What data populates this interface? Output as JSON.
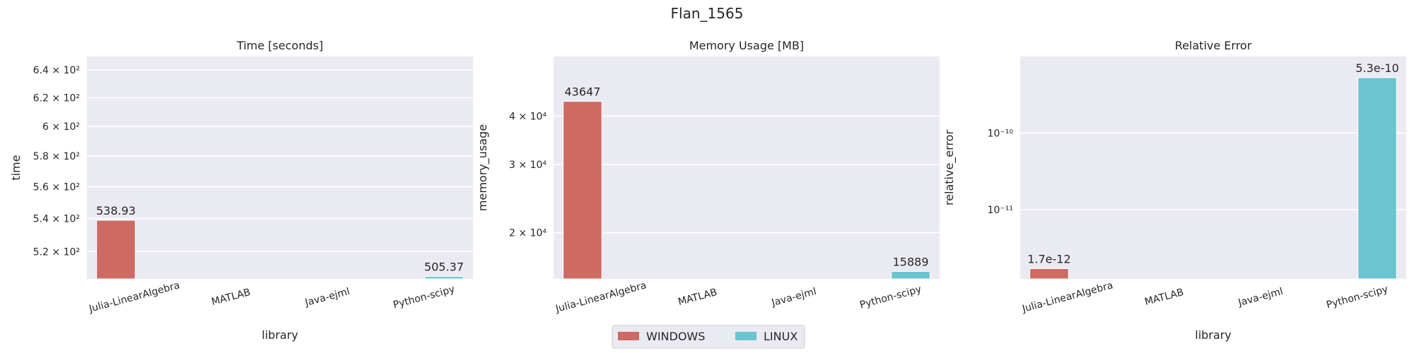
{
  "figure_title": "Flan_1565",
  "legend": {
    "items": [
      {
        "label": "WINDOWS",
        "color": "#cd6a64"
      },
      {
        "label": "LINUX",
        "color": "#6cc5ce"
      }
    ]
  },
  "colors": {
    "windows": "#cd6a64",
    "linux": "#6cc5ce",
    "panel_bg": "#eaeaf2"
  },
  "chart_data": [
    {
      "type": "bar",
      "title": "Time [seconds]",
      "xlabel": "library",
      "ylabel": "time",
      "yscale": "log",
      "categories": [
        "Julia-LinearAlgebra",
        "MATLAB",
        "Java-ejml",
        "Python-scipy"
      ],
      "series": [
        {
          "name": "WINDOWS",
          "values": [
            538.93,
            null,
            null,
            null
          ]
        },
        {
          "name": "LINUX",
          "values": [
            null,
            null,
            null,
            505.37
          ]
        }
      ],
      "bar_labels": [
        "538.93",
        "505.37"
      ],
      "yticks": [
        {
          "value": 520,
          "label": "5.2 × 10²"
        },
        {
          "value": 540,
          "label": "5.4 × 10²"
        },
        {
          "value": 560,
          "label": "5.6 × 10²"
        },
        {
          "value": 580,
          "label": "5.8 × 10²"
        },
        {
          "value": 600,
          "label": "6 × 10²"
        },
        {
          "value": 620,
          "label": "6.2 × 10²"
        },
        {
          "value": 640,
          "label": "6.4 × 10²"
        }
      ],
      "ylim": [
        504,
        650
      ],
      "grid": true
    },
    {
      "type": "bar",
      "title": "Memory Usage [MB]",
      "xlabel": "library",
      "ylabel": "memory_usage",
      "yscale": "log",
      "categories": [
        "Julia-LinearAlgebra",
        "MATLAB",
        "Java-ejml",
        "Python-scipy"
      ],
      "series": [
        {
          "name": "WINDOWS",
          "values": [
            43647,
            null,
            null,
            null
          ]
        },
        {
          "name": "LINUX",
          "values": [
            null,
            null,
            null,
            15889
          ]
        }
      ],
      "bar_labels": [
        "43647",
        "15889"
      ],
      "yticks": [
        {
          "value": 20000,
          "label": "2 × 10⁴"
        },
        {
          "value": 30000,
          "label": "3 × 10⁴"
        },
        {
          "value": 40000,
          "label": "4 × 10⁴"
        }
      ],
      "ylim": [
        15200,
        57000
      ],
      "grid": true
    },
    {
      "type": "bar",
      "title": "Relative Error",
      "xlabel": "library",
      "ylabel": "relative_error",
      "yscale": "log",
      "categories": [
        "Julia-LinearAlgebra",
        "MATLAB",
        "Java-ejml",
        "Python-scipy"
      ],
      "series": [
        {
          "name": "WINDOWS",
          "values": [
            1.7e-12,
            null,
            null,
            null
          ]
        },
        {
          "name": "LINUX",
          "values": [
            null,
            null,
            null,
            5.3e-10
          ]
        }
      ],
      "bar_labels": [
        "1.7e-12",
        "5.3e-10"
      ],
      "yticks": [
        {
          "value": 1e-11,
          "label": "10⁻¹¹"
        },
        {
          "value": 1e-10,
          "label": "10⁻¹⁰"
        }
      ],
      "ylim": [
        1.25e-12,
        1e-09
      ],
      "grid": true
    }
  ]
}
